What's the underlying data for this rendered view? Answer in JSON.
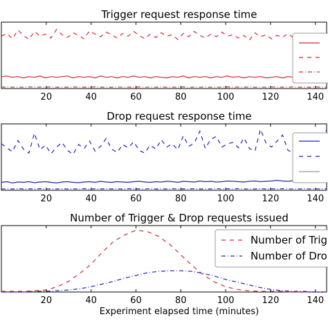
{
  "chart_data": [
    {
      "type": "line",
      "title": "Trigger request response time",
      "xlim": [
        0,
        145
      ],
      "ylim": [
        0,
        10
      ],
      "xticks": [
        20,
        40,
        60,
        80,
        100,
        120,
        140
      ],
      "legend": {
        "placement": "right",
        "entries": [
          "",
          "",
          ""
        ]
      },
      "series": [
        {
          "style": "dashed",
          "color": "#d62728",
          "y": [
            7.9,
            8.3,
            7.5,
            8.8,
            8.0,
            7.4,
            8.6,
            7.9,
            8.2,
            7.6,
            8.9,
            8.1,
            7.7,
            8.4,
            8.0,
            7.5,
            8.7,
            8.2,
            7.8,
            8.5,
            8.1,
            7.6,
            8.3,
            7.9,
            8.6,
            8.0,
            7.5,
            8.2,
            7.7,
            8.4,
            7.9,
            8.1,
            7.4,
            8.3,
            7.8,
            8.6,
            8.0,
            7.6,
            8.2,
            7.8,
            8.5,
            7.9,
            8.1,
            7.6,
            8.0,
            7.3,
            8.4,
            7.8,
            8.1,
            7.5,
            8.0,
            7.7,
            8.3,
            7.6,
            8.0,
            7.4,
            8.1,
            7.7,
            8.2,
            7.8
          ]
        },
        {
          "style": "solid",
          "color": "#d62728",
          "y": [
            1.8,
            1.9,
            1.7,
            1.8,
            1.6,
            1.8,
            1.7,
            1.9,
            1.6,
            1.8,
            1.7,
            1.8,
            1.9,
            1.6,
            1.8,
            1.7,
            1.8,
            1.6,
            1.9,
            1.7,
            1.8,
            1.6,
            1.8,
            1.7,
            1.9,
            1.7,
            1.8,
            1.6,
            1.8,
            1.7,
            1.6,
            1.8,
            1.7,
            1.9,
            1.6,
            1.8,
            1.7,
            1.8,
            1.6,
            1.8,
            1.7,
            1.9,
            1.7,
            1.8,
            1.6,
            1.8,
            1.7,
            1.8,
            1.6,
            1.7,
            1.8,
            1.6,
            1.8,
            1.7,
            1.9,
            1.7,
            1.8,
            1.6,
            1.8,
            1.7
          ]
        },
        {
          "style": "dashdot",
          "color": "#d62728",
          "y": [
            0.2,
            0.25,
            0.2,
            0.22,
            0.2,
            0.25,
            0.2,
            0.22,
            0.2,
            0.25,
            0.2,
            0.22,
            0.2,
            0.25,
            0.2,
            0.22,
            0.2,
            0.25,
            0.2,
            0.22,
            0.2,
            0.25,
            0.2,
            0.22,
            0.2,
            0.25,
            0.2,
            0.22,
            0.2,
            0.25,
            0.2,
            0.22,
            0.2,
            0.25,
            0.2,
            0.22,
            0.2,
            0.25,
            0.2,
            0.22,
            0.2,
            0.25,
            0.2,
            0.22,
            0.2,
            0.25,
            0.2,
            0.22,
            0.2,
            0.25,
            0.2,
            0.22,
            0.2,
            0.25,
            0.2,
            0.22,
            0.2,
            0.25,
            0.2,
            0.22
          ]
        }
      ]
    },
    {
      "type": "line",
      "title": "Drop request response time",
      "xlim": [
        0,
        145
      ],
      "ylim": [
        0,
        10
      ],
      "xticks": [
        20,
        40,
        60,
        80,
        100,
        120,
        140
      ],
      "legend": {
        "placement": "right",
        "entries": [
          "",
          "",
          ""
        ]
      },
      "series": [
        {
          "style": "dashed",
          "color": "#1f1fbf",
          "y": [
            7.0,
            6.4,
            5.8,
            7.5,
            6.2,
            5.6,
            8.6,
            6.1,
            6.8,
            5.5,
            6.5,
            7.2,
            6.0,
            5.4,
            6.9,
            6.3,
            7.4,
            5.9,
            6.6,
            7.8,
            6.2,
            5.7,
            6.9,
            6.4,
            7.3,
            6.0,
            5.6,
            6.8,
            6.2,
            7.6,
            6.5,
            7.0,
            6.1,
            8.2,
            6.6,
            7.1,
            8.9,
            6.3,
            7.7,
            8.1,
            6.5,
            7.0,
            7.2,
            6.4,
            7.9,
            6.3,
            5.9,
            9.2,
            7.1,
            6.5,
            7.4,
            8.3,
            6.0,
            5.7,
            7.6,
            8.9,
            6.9,
            7.5,
            8.4,
            9.0
          ]
        },
        {
          "style": "solid",
          "color": "#1f1fbf",
          "y": [
            1.2,
            1.3,
            1.1,
            1.25,
            1.2,
            1.3,
            1.15,
            1.25,
            1.3,
            1.2,
            1.1,
            1.25,
            1.3,
            1.2,
            1.15,
            1.25,
            1.3,
            1.2,
            1.35,
            1.25,
            1.2,
            1.3,
            1.25,
            1.2,
            1.3,
            1.35,
            1.25,
            1.2,
            1.3,
            1.25,
            1.35,
            1.3,
            1.2,
            1.35,
            1.3,
            1.25,
            1.4,
            1.3,
            1.35,
            1.25,
            1.3,
            1.4,
            1.35,
            1.3,
            1.25,
            1.35,
            1.4,
            1.3,
            1.35,
            1.4,
            1.5,
            1.4,
            1.35,
            1.45,
            1.4,
            1.5,
            1.45,
            1.4,
            1.5,
            1.45
          ]
        },
        {
          "style": "dashdot",
          "color": "#1f1fbf",
          "y": [
            0.2,
            0.22,
            0.2,
            0.25,
            0.2,
            0.22,
            0.2,
            0.25,
            0.2,
            0.22,
            0.2,
            0.25,
            0.2,
            0.22,
            0.2,
            0.25,
            0.2,
            0.22,
            0.2,
            0.25,
            0.2,
            0.22,
            0.2,
            0.25,
            0.2,
            0.22,
            0.2,
            0.25,
            0.2,
            0.22,
            0.2,
            0.25,
            0.2,
            0.22,
            0.2,
            0.25,
            0.2,
            0.22,
            0.2,
            0.25,
            0.2,
            0.22,
            0.2,
            0.25,
            0.2,
            0.22,
            0.2,
            0.25,
            0.2,
            0.22,
            0.2,
            0.25,
            0.2,
            0.22,
            0.2,
            0.25,
            0.2,
            0.22,
            0.2,
            0.25
          ]
        }
      ]
    },
    {
      "type": "line",
      "title": "Number of Trigger & Drop requests issued",
      "xlabel": "Experiment elapsed time (minutes)",
      "xlim": [
        0,
        145
      ],
      "ylim": [
        0,
        100
      ],
      "xticks": [
        20,
        40,
        60,
        80,
        100,
        120,
        140
      ],
      "legend": {
        "placement": "top-right",
        "entries": [
          "Number of Trig",
          "Number of Dro"
        ]
      },
      "series": [
        {
          "name": "Number of Trig",
          "style": "dashed",
          "color": "#d62728",
          "x": [
            0,
            5,
            10,
            15,
            20,
            25,
            30,
            35,
            40,
            45,
            50,
            55,
            60,
            65,
            70,
            75,
            80,
            85,
            90,
            95,
            100,
            105,
            110,
            115,
            120,
            125,
            130,
            135,
            140,
            145
          ],
          "y": [
            1,
            1,
            1,
            2,
            3,
            8,
            16,
            28,
            42,
            60,
            76,
            86,
            93,
            91,
            84,
            72,
            56,
            40,
            26,
            15,
            8,
            4,
            2,
            1,
            1,
            1,
            0,
            0,
            0,
            0
          ]
        },
        {
          "name": "Number of Dro",
          "style": "dashdot",
          "color": "#1f1fbf",
          "x": [
            0,
            5,
            10,
            15,
            20,
            25,
            30,
            35,
            40,
            45,
            50,
            55,
            60,
            65,
            70,
            75,
            80,
            85,
            90,
            95,
            100,
            105,
            110,
            115,
            120,
            125,
            130,
            135,
            140,
            145
          ],
          "y": [
            0,
            0,
            0,
            1,
            1,
            2,
            3,
            5,
            8,
            12,
            16,
            21,
            25,
            29,
            31,
            32,
            32,
            31,
            28,
            24,
            19,
            15,
            11,
            7,
            4,
            2,
            1,
            1,
            0,
            0
          ]
        }
      ]
    }
  ]
}
